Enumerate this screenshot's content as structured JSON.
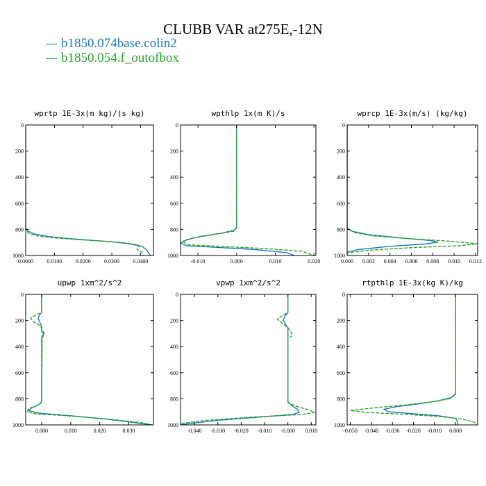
{
  "title": "CLUBB VAR at275E,-12N",
  "legend": [
    {
      "name": "b1850.074base.colin2",
      "color": "#1f77b4",
      "dashed": false
    },
    {
      "name": "b1850.054.f_outofbox",
      "color": "#2ca02c",
      "dashed": true
    }
  ],
  "chart_data": [
    {
      "type": "line",
      "title": "wprtp  1E-3x(m kg)/(s kg)",
      "xlim": [
        0.0,
        0.0445
      ],
      "ylim": [
        1000,
        0
      ],
      "xticks": [
        0.0,
        0.01,
        0.02,
        0.03,
        0.04
      ],
      "xtick_labels": [
        "0.0000",
        "0.0100",
        "0.0200",
        "0.0300",
        "0.0400"
      ],
      "yticks": [
        0,
        200,
        400,
        600,
        800,
        1000
      ],
      "series": [
        {
          "name": "b1850.074base.colin2",
          "points": [
            [
              0,
              0
            ],
            [
              0,
              790
            ],
            [
              0.001,
              815
            ],
            [
              0.003,
              835
            ],
            [
              0.008,
              855
            ],
            [
              0.015,
              870
            ],
            [
              0.022,
              882
            ],
            [
              0.03,
              895
            ],
            [
              0.036,
              910
            ],
            [
              0.0405,
              930
            ],
            [
              0.042,
              955
            ],
            [
              0.043,
              985
            ],
            [
              0.0435,
              1000
            ]
          ]
        },
        {
          "name": "b1850.054.f_outofbox",
          "points": [
            [
              0,
              0
            ],
            [
              0,
              800
            ],
            [
              0.001,
              830
            ],
            [
              0.004,
              850
            ],
            [
              0.01,
              865
            ],
            [
              0.018,
              878
            ],
            [
              0.027,
              890
            ],
            [
              0.034,
              902
            ],
            [
              0.039,
              918
            ],
            [
              0.0395,
              935
            ],
            [
              0.0388,
              955
            ],
            [
              0.0405,
              975
            ],
            [
              0.041,
              1000
            ]
          ]
        }
      ]
    },
    {
      "type": "line",
      "title": "wpthlp  1x(m K)/s",
      "xlim": [
        -0.0145,
        0.0205
      ],
      "ylim": [
        1000,
        0
      ],
      "xticks": [
        -0.01,
        0.0,
        0.01,
        0.02
      ],
      "xtick_labels": [
        "-0.010",
        "0.000",
        "0.010",
        "0.020"
      ],
      "yticks": [
        0,
        200,
        400,
        600,
        800,
        1000
      ],
      "series": [
        {
          "name": "b1850.074base.colin2",
          "points": [
            [
              0,
              0
            ],
            [
              0,
              780
            ],
            [
              -0.0005,
              805
            ],
            [
              -0.004,
              830
            ],
            [
              -0.0095,
              855
            ],
            [
              -0.013,
              880
            ],
            [
              -0.0145,
              905
            ],
            [
              -0.013,
              925
            ],
            [
              -0.005,
              938
            ],
            [
              0.005,
              955
            ],
            [
              0.013,
              978
            ],
            [
              0.015,
              1000
            ]
          ]
        },
        {
          "name": "b1850.054.f_outofbox",
          "points": [
            [
              0,
              0
            ],
            [
              0,
              790
            ],
            [
              -0.0008,
              815
            ],
            [
              -0.006,
              840
            ],
            [
              -0.011,
              865
            ],
            [
              -0.014,
              892
            ],
            [
              -0.0125,
              918
            ],
            [
              -0.003,
              932
            ],
            [
              0.008,
              948
            ],
            [
              0.017,
              968
            ],
            [
              0.02,
              1000
            ]
          ]
        }
      ]
    },
    {
      "type": "line",
      "title": "wprcp  1E-3x(m/s) (kg/kg)",
      "xlim": [
        0.0,
        0.0122
      ],
      "ylim": [
        1000,
        0
      ],
      "xticks": [
        0.0,
        0.002,
        0.004,
        0.006,
        0.008,
        0.01,
        0.012
      ],
      "xtick_labels": [
        "0.000",
        "0.002",
        "0.004",
        "0.006",
        "0.008",
        "0.010",
        "0.012"
      ],
      "yticks": [
        0,
        200,
        400,
        600,
        800,
        1000
      ],
      "series": [
        {
          "name": "b1850.074base.colin2",
          "points": [
            [
              0,
              0
            ],
            [
              0,
              790
            ],
            [
              0.0005,
              815
            ],
            [
              0.002,
              840
            ],
            [
              0.005,
              865
            ],
            [
              0.0078,
              885
            ],
            [
              0.0085,
              898
            ],
            [
              0.0072,
              912
            ],
            [
              0.004,
              930
            ],
            [
              0.001,
              955
            ],
            [
              0,
              975
            ],
            [
              0,
              1000
            ]
          ]
        },
        {
          "name": "b1850.054.f_outofbox",
          "points": [
            [
              0,
              0
            ],
            [
              0,
              795
            ],
            [
              0.0007,
              825
            ],
            [
              0.0025,
              850
            ],
            [
              0.006,
              872
            ],
            [
              0.0095,
              890
            ],
            [
              0.0122,
              910
            ],
            [
              0.0105,
              925
            ],
            [
              0.006,
              940
            ],
            [
              0.002,
              960
            ],
            [
              0,
              980
            ],
            [
              0,
              1000
            ]
          ]
        }
      ]
    },
    {
      "type": "line",
      "title": "upwp  1xm^2/s^2",
      "xlim": [
        -0.0055,
        0.0385
      ],
      "ylim": [
        1000,
        0
      ],
      "xticks": [
        0.0,
        0.01,
        0.02,
        0.03
      ],
      "xtick_labels": [
        "0.000",
        "0.010",
        "0.020",
        "0.030"
      ],
      "yticks": [
        0,
        200,
        400,
        600,
        800,
        1000
      ],
      "series": [
        {
          "name": "b1850.074base.colin2",
          "points": [
            [
              0,
              0
            ],
            [
              0,
              140
            ],
            [
              -0.0008,
              160
            ],
            [
              -0.0012,
              185
            ],
            [
              -0.0006,
              215
            ],
            [
              0,
              245
            ],
            [
              0,
              285
            ],
            [
              0.0006,
              300
            ],
            [
              0,
              330
            ],
            [
              0,
              820
            ],
            [
              -0.001,
              845
            ],
            [
              -0.0035,
              870
            ],
            [
              -0.0045,
              890
            ],
            [
              -0.001,
              910
            ],
            [
              0.01,
              930
            ],
            [
              0.022,
              955
            ],
            [
              0.031,
              980
            ],
            [
              0.038,
              1000
            ]
          ]
        },
        {
          "name": "b1850.054.f_outofbox",
          "points": [
            [
              0,
              0
            ],
            [
              0,
              135
            ],
            [
              -0.0015,
              155
            ],
            [
              -0.0038,
              180
            ],
            [
              -0.0028,
              210
            ],
            [
              -0.0005,
              240
            ],
            [
              0.0004,
              280
            ],
            [
              0.001,
              305
            ],
            [
              0.0002,
              330
            ],
            [
              0,
              830
            ],
            [
              -0.002,
              855
            ],
            [
              -0.0045,
              875
            ],
            [
              -0.005,
              900
            ],
            [
              -0.002,
              915
            ],
            [
              0.012,
              935
            ],
            [
              0.025,
              960
            ],
            [
              0.035,
              985
            ],
            [
              0.038,
              1000
            ]
          ]
        }
      ]
    },
    {
      "type": "line",
      "title": "vpwp  1xm^2/s^2",
      "xlim": [
        -0.046,
        0.012
      ],
      "ylim": [
        1000,
        0
      ],
      "xticks": [
        -0.04,
        -0.03,
        -0.02,
        -0.01,
        0.0,
        0.01
      ],
      "xtick_labels": [
        "-0.040",
        "-0.030",
        "-0.020",
        "-0.010",
        "-0.000",
        "0.010"
      ],
      "yticks": [
        0,
        200,
        400,
        600,
        800,
        1000
      ],
      "series": [
        {
          "name": "b1850.074base.colin2",
          "points": [
            [
              0,
              0
            ],
            [
              0,
              140
            ],
            [
              -0.0012,
              165
            ],
            [
              -0.002,
              195
            ],
            [
              -0.001,
              230
            ],
            [
              0,
              260
            ],
            [
              0,
              290
            ],
            [
              0,
              310
            ],
            [
              0,
              820
            ],
            [
              0.0015,
              850
            ],
            [
              0.004,
              880
            ],
            [
              0.0048,
              905
            ],
            [
              0.002,
              920
            ],
            [
              -0.012,
              940
            ],
            [
              -0.03,
              965
            ],
            [
              -0.042,
              990
            ],
            [
              -0.046,
              1000
            ]
          ]
        },
        {
          "name": "b1850.054.f_outofbox",
          "points": [
            [
              0,
              0
            ],
            [
              0,
              135
            ],
            [
              -0.002,
              160
            ],
            [
              -0.0045,
              190
            ],
            [
              -0.0025,
              220
            ],
            [
              0,
              255
            ],
            [
              0.0015,
              295
            ],
            [
              0.002,
              315
            ],
            [
              0,
              340
            ],
            [
              0,
              830
            ],
            [
              0.004,
              860
            ],
            [
              0.009,
              885
            ],
            [
              0.0115,
              905
            ],
            [
              0.006,
              920
            ],
            [
              -0.015,
              940
            ],
            [
              -0.035,
              965
            ],
            [
              -0.046,
              990
            ]
          ]
        }
      ]
    },
    {
      "type": "line",
      "title": "rtpthlp  1E-3x(kg K)/kg",
      "xlim": [
        -0.0515,
        0.0105
      ],
      "ylim": [
        1000,
        0
      ],
      "xticks": [
        -0.05,
        -0.04,
        -0.03,
        -0.02,
        -0.01,
        0.0
      ],
      "xtick_labels": [
        "-0.050",
        "-0.040",
        "-0.030",
        "-0.020",
        "-0.010",
        "0.000"
      ],
      "yticks": [
        0,
        200,
        400,
        600,
        800,
        1000
      ],
      "series": [
        {
          "name": "b1850.074base.colin2",
          "points": [
            [
              0,
              0
            ],
            [
              0,
              760
            ],
            [
              -0.002,
              790
            ],
            [
              -0.008,
              815
            ],
            [
              -0.018,
              840
            ],
            [
              -0.028,
              860
            ],
            [
              -0.034,
              880
            ],
            [
              -0.032,
              898
            ],
            [
              -0.02,
              915
            ],
            [
              -0.008,
              930
            ],
            [
              0,
              950
            ],
            [
              0.001,
              975
            ],
            [
              0.001,
              1000
            ]
          ]
        },
        {
          "name": "b1850.054.f_outofbox",
          "points": [
            [
              0,
              0
            ],
            [
              0,
              770
            ],
            [
              -0.003,
              800
            ],
            [
              -0.012,
              825
            ],
            [
              -0.024,
              848
            ],
            [
              -0.038,
              868
            ],
            [
              -0.05,
              890
            ],
            [
              -0.042,
              905
            ],
            [
              -0.025,
              918
            ],
            [
              -0.008,
              935
            ],
            [
              0.003,
              955
            ],
            [
              0.009,
              980
            ],
            [
              0.01,
              1000
            ]
          ]
        }
      ]
    }
  ]
}
